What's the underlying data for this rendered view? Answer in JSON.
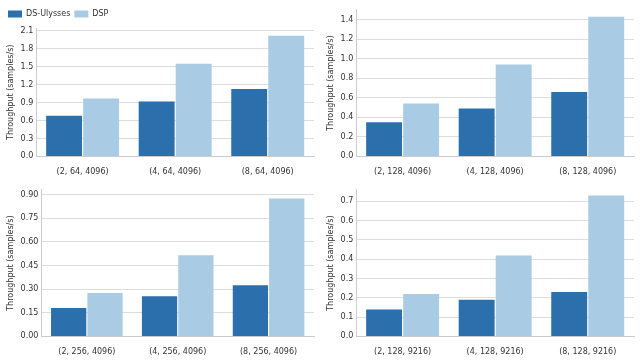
{
  "chart_data": [
    {
      "type": "bar",
      "y_label": "Throughput (samples/s)",
      "categories": [
        "(2, 64, 4096)",
        "(4, 64, 4096)",
        "(8, 64, 4096)"
      ],
      "series": [
        {
          "name": "DS-Ulysses",
          "color": "#2b6fad",
          "values": [
            0.68,
            0.92,
            1.13
          ]
        },
        {
          "name": "DSP",
          "color": "#a9cce4",
          "values": [
            0.97,
            1.55,
            2.02
          ]
        }
      ],
      "ylim": [
        0,
        2.15
      ],
      "yticks": [
        {
          "value": 0,
          "label": "0.0"
        },
        0.3,
        0.6,
        0.9,
        1.2,
        1.5,
        1.8,
        2.1
      ],
      "grid": true,
      "legend": "upper left"
    },
    {
      "type": "bar",
      "y_label": "Throughput (samples/s)",
      "categories": [
        "(2, 128, 4096)",
        "(4, 128, 4096)",
        "(8, 128, 4096)"
      ],
      "series": [
        {
          "name": "DS-Ulysses",
          "color": "#2b6fad",
          "values": [
            0.35,
            0.49,
            0.66
          ]
        },
        {
          "name": "DSP",
          "color": "#a9cce4",
          "values": [
            0.54,
            0.94,
            1.43
          ]
        }
      ],
      "ylim": [
        0,
        1.5
      ],
      "yticks": [
        {
          "value": 0,
          "label": "0.0"
        },
        0.2,
        0.4,
        0.6,
        0.8,
        {
          "value": 1,
          "label": "1.0"
        },
        1.2,
        1.4
      ],
      "grid": true
    },
    {
      "type": "bar",
      "y_label": "Throughput (samples/s)",
      "categories": [
        "(2, 256, 4096)",
        "(4, 256, 4096)",
        "(8, 256, 4096)"
      ],
      "series": [
        {
          "name": "DS-Ulysses",
          "color": "#2b6fad",
          "values": [
            0.18,
            0.255,
            0.325
          ]
        },
        {
          "name": "DSP",
          "color": "#a9cce4",
          "values": [
            0.275,
            0.515,
            0.875
          ]
        }
      ],
      "ylim": [
        0,
        0.93
      ],
      "yticks": [
        {
          "value": 0,
          "label": "0.00"
        },
        0.15,
        {
          "value": 0.3,
          "label": "0.30"
        },
        0.45,
        {
          "value": 0.6,
          "label": "0.60"
        },
        0.75,
        {
          "value": 0.9,
          "label": "0.90"
        }
      ],
      "grid": true
    },
    {
      "type": "bar",
      "y_label": "Throughput (samples/s)",
      "categories": [
        "(2, 128, 9216)",
        "(4, 128, 9216)",
        "(8, 128, 9216)"
      ],
      "series": [
        {
          "name": "DS-Ulysses",
          "color": "#2b6fad",
          "values": [
            0.14,
            0.19,
            0.23
          ]
        },
        {
          "name": "DSP",
          "color": "#a9cce4",
          "values": [
            0.22,
            0.42,
            0.73
          ]
        }
      ],
      "ylim": [
        0,
        0.76
      ],
      "yticks": [
        {
          "value": 0,
          "label": "0.0"
        },
        0.1,
        0.2,
        0.3,
        0.4,
        0.5,
        0.6,
        0.7
      ],
      "grid": true
    }
  ]
}
